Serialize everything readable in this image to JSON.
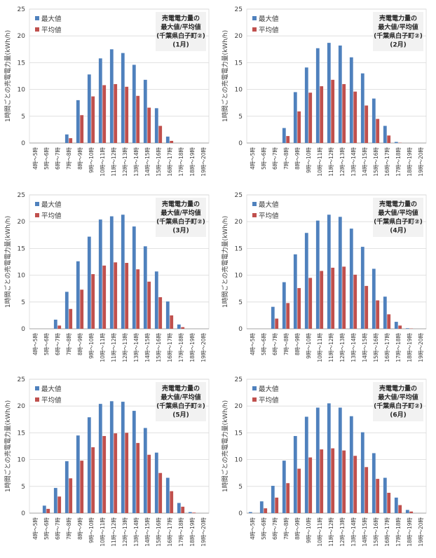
{
  "common": {
    "categories": [
      "4時～5時",
      "5時～6時",
      "6時～7時",
      "7時～8時",
      "8時～9時",
      "9時～10時",
      "10時～11時",
      "11時～12時",
      "12時～13時",
      "13時～14時",
      "14時～15時",
      "15時～16時",
      "16時～17時",
      "17時～18時",
      "18時～19時",
      "19時～20時"
    ],
    "ylabel": "1時間ごとの売電電力量(kWh/h)",
    "yticks": [
      "0",
      "5",
      "10",
      "15",
      "20",
      "25"
    ],
    "legend": [
      "最大値",
      "平均値"
    ],
    "title_lines": [
      "売電電力量の",
      "最大値/平均値",
      "(千葉県白子町②)"
    ],
    "colors": {
      "max": "#4f81bd",
      "avg": "#c0504d"
    }
  },
  "chart_data": [
    {
      "type": "bar",
      "month": "(1月)",
      "ylim": [
        0,
        25
      ],
      "series": [
        {
          "name": "最大値",
          "values": [
            0,
            0,
            0,
            1.6,
            8.0,
            12.8,
            15.8,
            17.5,
            16.8,
            14.6,
            11.8,
            6.5,
            1.2,
            0,
            0,
            0
          ]
        },
        {
          "name": "平均値",
          "values": [
            0,
            0,
            0,
            0.9,
            5.2,
            8.7,
            10.8,
            11.0,
            10.5,
            8.8,
            6.6,
            3.2,
            0.4,
            0,
            0,
            0
          ]
        }
      ]
    },
    {
      "type": "bar",
      "month": "(2月)",
      "ylim": [
        0,
        25
      ],
      "series": [
        {
          "name": "最大値",
          "values": [
            0,
            0,
            0,
            2.8,
            9.5,
            14.1,
            17.7,
            18.7,
            18.2,
            16.0,
            13.0,
            8.3,
            3.2,
            0.2,
            0,
            0
          ]
        },
        {
          "name": "平均値",
          "values": [
            0,
            0,
            0,
            1.3,
            5.9,
            9.4,
            10.6,
            11.8,
            11.0,
            9.6,
            7.0,
            4.5,
            1.4,
            0.05,
            0,
            0
          ]
        }
      ]
    },
    {
      "type": "bar",
      "month": "(3月)",
      "ylim": [
        0,
        25
      ],
      "series": [
        {
          "name": "最大値",
          "values": [
            0,
            0,
            1.7,
            6.9,
            12.6,
            17.2,
            20.4,
            21.0,
            21.3,
            19.1,
            15.4,
            10.7,
            5.1,
            0.8,
            0,
            0
          ]
        },
        {
          "name": "平均値",
          "values": [
            0,
            0,
            0.6,
            3.7,
            7.3,
            10.2,
            11.8,
            12.4,
            12.3,
            11.1,
            8.8,
            5.9,
            2.5,
            0.3,
            0,
            0
          ]
        }
      ]
    },
    {
      "type": "bar",
      "month": "(4月)",
      "ylim": [
        0,
        25
      ],
      "series": [
        {
          "name": "最大値",
          "values": [
            0,
            0,
            4.1,
            8.7,
            13.9,
            17.9,
            20.2,
            21.3,
            20.9,
            18.7,
            15.3,
            11.2,
            6.0,
            1.3,
            0.1,
            0
          ]
        },
        {
          "name": "平均値",
          "values": [
            0,
            0,
            1.9,
            4.8,
            7.6,
            9.5,
            10.8,
            11.4,
            11.6,
            10.1,
            8.0,
            5.3,
            2.7,
            0.6,
            0.05,
            0
          ]
        }
      ]
    },
    {
      "type": "bar",
      "month": "(5月)",
      "ylim": [
        0,
        25
      ],
      "series": [
        {
          "name": "最大値",
          "values": [
            0,
            1.4,
            4.7,
            9.7,
            14.5,
            17.9,
            20.4,
            20.9,
            20.8,
            19.1,
            15.9,
            11.3,
            6.6,
            1.9,
            0.2,
            0
          ]
        },
        {
          "name": "平均値",
          "values": [
            0,
            0.8,
            3.1,
            6.5,
            9.8,
            12.3,
            14.4,
            14.9,
            15.0,
            13.1,
            10.9,
            7.5,
            4.1,
            1.2,
            0.1,
            0
          ]
        }
      ]
    },
    {
      "type": "bar",
      "month": "(6月)",
      "ylim": [
        0,
        25
      ],
      "series": [
        {
          "name": "最大値",
          "values": [
            0.2,
            2.2,
            5.1,
            9.8,
            14.4,
            18.0,
            19.7,
            20.5,
            19.7,
            18.1,
            15.1,
            11.2,
            6.6,
            2.9,
            0.6,
            0
          ]
        },
        {
          "name": "平均値",
          "values": [
            0,
            0.9,
            2.9,
            5.6,
            8.3,
            10.4,
            11.9,
            12.1,
            11.7,
            10.7,
            8.6,
            6.4,
            3.8,
            1.5,
            0.3,
            0
          ]
        }
      ]
    }
  ]
}
